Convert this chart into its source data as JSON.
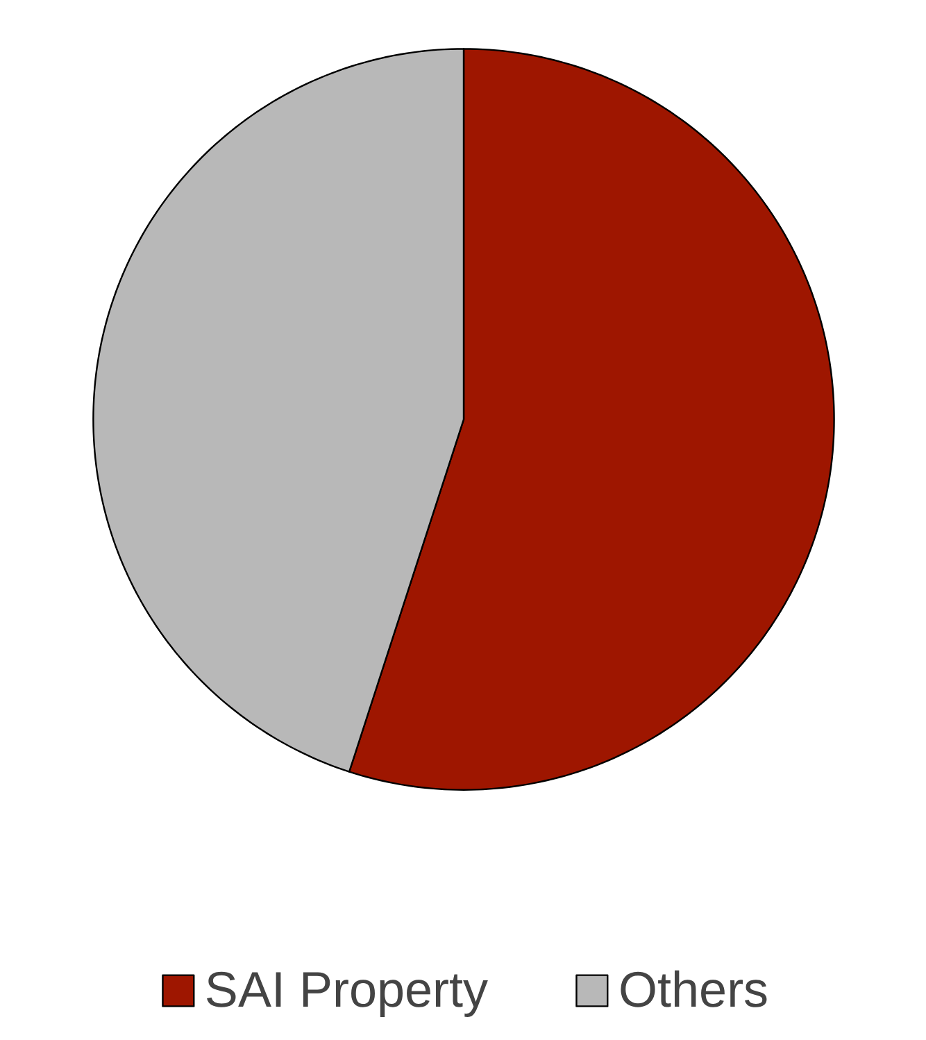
{
  "chart_data": {
    "type": "pie",
    "categories": [
      "SAI Property",
      "Others"
    ],
    "values": [
      55,
      45
    ],
    "colors": [
      "#9e1600",
      "#b8b8b8"
    ],
    "legend": "bottom"
  }
}
